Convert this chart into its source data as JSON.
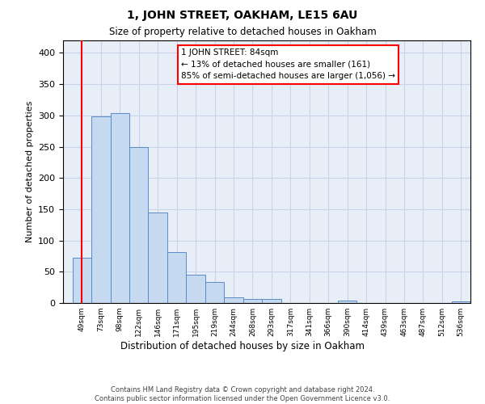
{
  "title": "1, JOHN STREET, OAKHAM, LE15 6AU",
  "subtitle": "Size of property relative to detached houses in Oakham",
  "xlabel": "Distribution of detached houses by size in Oakham",
  "ylabel": "Number of detached properties",
  "footer_line1": "Contains HM Land Registry data © Crown copyright and database right 2024.",
  "footer_line2": "Contains public sector information licensed under the Open Government Licence v3.0.",
  "annotation_line1": "1 JOHN STREET: 84sqm",
  "annotation_line2": "← 13% of detached houses are smaller (161)",
  "annotation_line3": "85% of semi-detached houses are larger (1,056) →",
  "bar_labels": [
    "49sqm",
    "73sqm",
    "98sqm",
    "122sqm",
    "146sqm",
    "171sqm",
    "195sqm",
    "219sqm",
    "244sqm",
    "268sqm",
    "293sqm",
    "317sqm",
    "341sqm",
    "366sqm",
    "390sqm",
    "414sqm",
    "439sqm",
    "463sqm",
    "487sqm",
    "512sqm",
    "536sqm"
  ],
  "bar_values": [
    72,
    298,
    304,
    249,
    145,
    82,
    45,
    33,
    9,
    6,
    6,
    0,
    0,
    0,
    4,
    0,
    0,
    0,
    0,
    0,
    3
  ],
  "bar_color": "#c5d9f0",
  "bar_edge_color": "#5a8ac6",
  "redline_index": 0.5,
  "ylim": [
    0,
    420
  ],
  "yticks": [
    0,
    50,
    100,
    150,
    200,
    250,
    300,
    350,
    400
  ],
  "grid_color": "#c8d4e8",
  "background_color": "#e8eef8",
  "plot_background": "#ffffff"
}
